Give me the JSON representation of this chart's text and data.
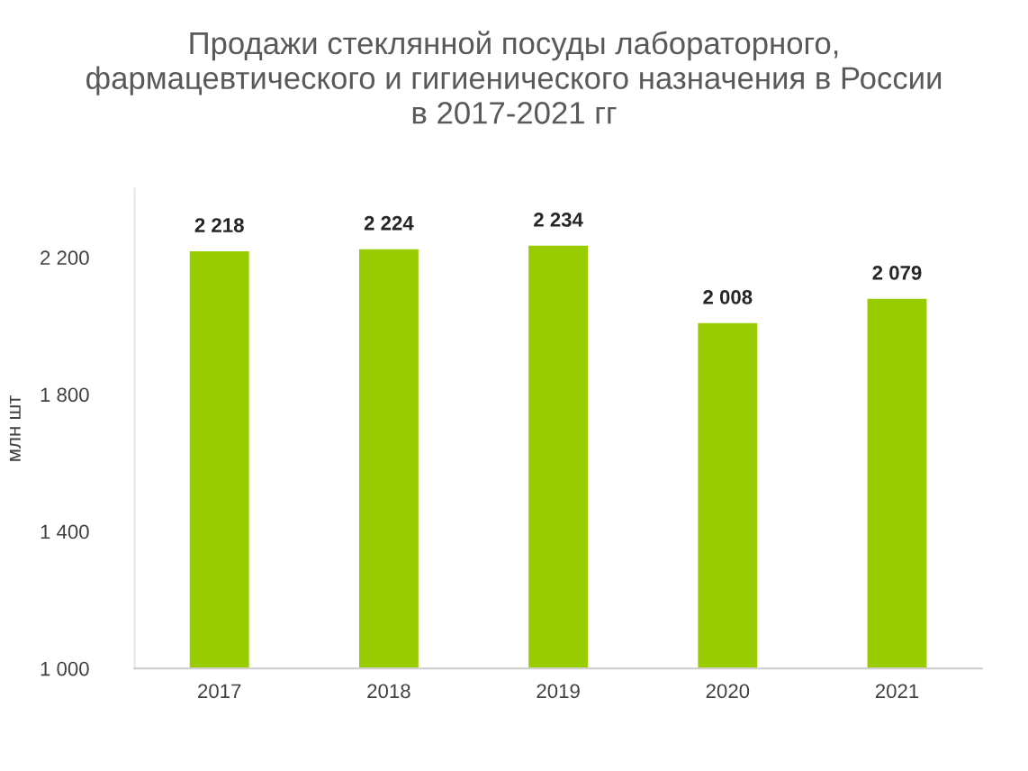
{
  "chart_data": {
    "type": "bar",
    "title": "Продажи стеклянной посуды лабораторного,\nфармацевтического и гигиенического назначения в России\nв 2017-2021 гг",
    "ylabel": "млн шт",
    "categories": [
      "2017",
      "2018",
      "2019",
      "2020",
      "2021"
    ],
    "values": [
      2218,
      2224,
      2234,
      2008,
      2079
    ],
    "value_labels": [
      "2 218",
      "2 224",
      "2 234",
      "2 008",
      "2 079"
    ],
    "color": "#99cc00",
    "ylim": [
      1000,
      2400
    ],
    "yticks": [
      {
        "value": 1000,
        "label": "1 000"
      },
      {
        "value": 1400,
        "label": "1 400"
      },
      {
        "value": 1800,
        "label": "1 800"
      },
      {
        "value": 2200,
        "label": "2 200"
      }
    ],
    "grid": false,
    "legend": false
  }
}
